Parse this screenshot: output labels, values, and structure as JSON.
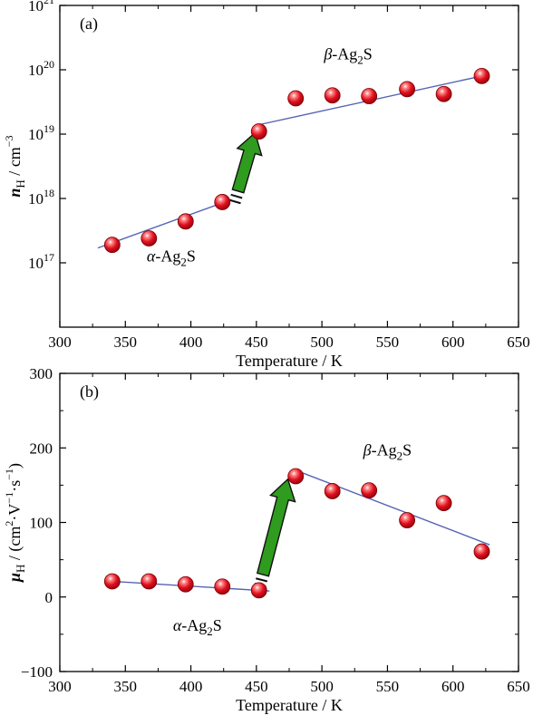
{
  "chart_data": [
    {
      "type": "scatter",
      "panel_label": "(a)",
      "xlabel": "Temperature / K",
      "ylabel": "n_H / cm^-3",
      "ylabel_parts": {
        "symbol": "n",
        "subscript": "H",
        "unit": " / cm",
        "unit_sup": "−3"
      },
      "xlim": [
        300,
        650
      ],
      "ylim": [
        1e+16,
        1e+21
      ],
      "yscale": "log",
      "x_ticks": [
        300,
        350,
        400,
        450,
        500,
        550,
        600,
        650
      ],
      "x_tick_labels": [
        "300",
        "350",
        "400",
        "450",
        "500",
        "550",
        "600",
        "650"
      ],
      "y_ticks": [
        1e+17,
        1e+18,
        1e+19,
        1e+20,
        1e+21
      ],
      "y_tick_labels": [
        {
          "base": "10",
          "exp": "17"
        },
        {
          "base": "10",
          "exp": "18"
        },
        {
          "base": "10",
          "exp": "19"
        },
        {
          "base": "10",
          "exp": "20"
        },
        {
          "base": "10",
          "exp": "21"
        }
      ],
      "series": [
        {
          "x": [
            340,
            368,
            396,
            424,
            452,
            480,
            508,
            536,
            565,
            593,
            622
          ],
          "y": [
            1.9e+17,
            2.4e+17,
            4.4e+17,
            8.8e+17,
            1.1e+19,
            3.6e+19,
            4e+19,
            3.9e+19,
            5e+19,
            4.2e+19,
            8e+19
          ]
        }
      ],
      "fit_lines": [
        {
          "x": [
            329,
            431
          ],
          "y": [
            1.7e+17,
            9.6e+17
          ]
        },
        {
          "x": [
            452,
            622
          ],
          "y": [
            1.4e+19,
            8e+19
          ]
        }
      ],
      "arrow": {
        "x_from": 436,
        "y_from": 1.3e+18,
        "x_to": 449,
        "y_to": 1.05e+19
      },
      "phase_labels": [
        {
          "greek": "α",
          "text": "-Ag",
          "sub": "2",
          "tail": "S",
          "x": 385,
          "y": 1.05e+17
        },
        {
          "greek": "β",
          "text": "-Ag",
          "sub": "2",
          "tail": "S",
          "x": 520,
          "y": 1.45e+20
        }
      ],
      "grid": false,
      "legend": "none",
      "colors": {
        "points": "#d9081e",
        "fit": "#5663b5",
        "arrow": "#2f9b1f",
        "arrow_edge": "#111111"
      }
    },
    {
      "type": "scatter",
      "panel_label": "(b)",
      "xlabel": "Temperature / K",
      "ylabel": "μ_H / (cm^2·V^-1·s^-1)",
      "ylabel_parts": {
        "symbol": "μ",
        "subscript": "H",
        "unit_open": " / (cm",
        "unit_sup1": "2",
        "unit_mid1": "·V",
        "unit_sup2": "−1",
        "unit_mid2": "·s",
        "unit_sup3": "−1",
        "unit_close": ")"
      },
      "xlim": [
        300,
        650
      ],
      "ylim": [
        -100,
        300
      ],
      "yscale": "linear",
      "x_ticks": [
        300,
        350,
        400,
        450,
        500,
        550,
        600,
        650
      ],
      "x_tick_labels": [
        "300",
        "350",
        "400",
        "450",
        "500",
        "550",
        "600",
        "650"
      ],
      "y_ticks": [
        -100,
        0,
        100,
        200,
        300
      ],
      "y_tick_labels": [
        "−100",
        "0",
        "100",
        "200",
        "300"
      ],
      "series": [
        {
          "x": [
            340,
            368,
            396,
            424,
            452,
            480,
            508,
            536,
            565,
            593,
            622
          ],
          "y": [
            21,
            21,
            17,
            14,
            9,
            162,
            142,
            143,
            103,
            126,
            61
          ]
        }
      ],
      "fit_lines": [
        {
          "x": [
            340,
            460
          ],
          "y": [
            21,
            8
          ]
        },
        {
          "x": [
            480,
            628
          ],
          "y": [
            170,
            70
          ]
        }
      ],
      "arrow": {
        "x_from": 455,
        "y_from": 30,
        "x_to": 474,
        "y_to": 158
      },
      "phase_labels": [
        {
          "greek": "α",
          "text": "-Ag",
          "sub": "2",
          "tail": "S",
          "x": 405,
          "y": -45
        },
        {
          "greek": "β",
          "text": "-Ag",
          "sub": "2",
          "tail": "S",
          "x": 550,
          "y": 190
        }
      ],
      "grid": false,
      "legend": "none",
      "colors": {
        "points": "#d9081e",
        "fit": "#5663b5",
        "arrow": "#2f9b1f",
        "arrow_edge": "#111111"
      }
    }
  ]
}
